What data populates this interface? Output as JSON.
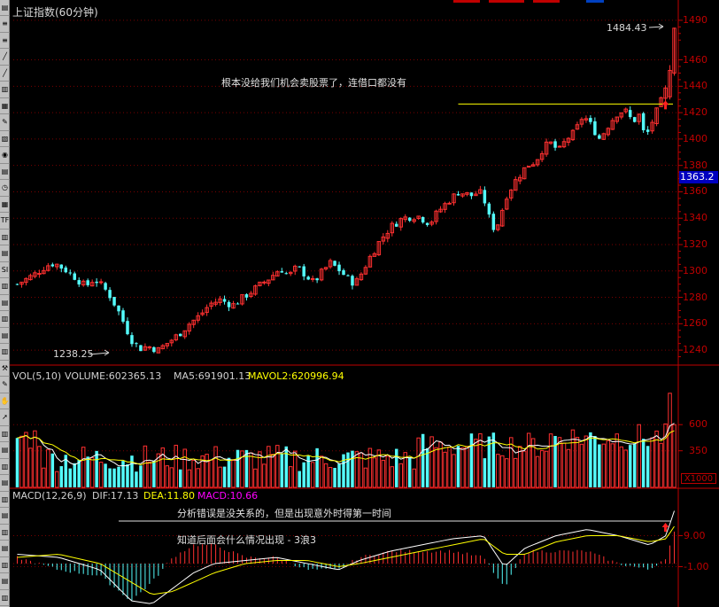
{
  "toolbar": {
    "buttons": [
      {
        "icon": "page-icon",
        "glyph": "▤"
      },
      {
        "icon": "list-icon",
        "glyph": "≡"
      },
      {
        "icon": "list-icon",
        "glyph": "≡"
      },
      {
        "icon": "line-tool-icon",
        "glyph": "╱"
      },
      {
        "icon": "line-tool-icon",
        "glyph": "╱"
      },
      {
        "icon": "chart-icon",
        "glyph": "▥"
      },
      {
        "icon": "chart-icon",
        "glyph": "▦"
      },
      {
        "icon": "pen-icon",
        "glyph": "✎"
      },
      {
        "icon": "chart-icon",
        "glyph": "▧"
      },
      {
        "icon": "circle-icon",
        "glyph": "◉"
      },
      {
        "icon": "chart-icon",
        "glyph": "▤"
      },
      {
        "icon": "clock-icon",
        "glyph": "◷"
      },
      {
        "icon": "grid-icon",
        "glyph": "▦"
      },
      {
        "icon": "label-tf",
        "glyph": "TF"
      },
      {
        "icon": "chart-icon",
        "glyph": "▥"
      },
      {
        "icon": "chart-icon",
        "glyph": "▤"
      },
      {
        "icon": "label-si",
        "glyph": "SI"
      },
      {
        "icon": "chart-icon",
        "glyph": "▥"
      },
      {
        "icon": "chart-icon",
        "glyph": "▤"
      },
      {
        "icon": "chart-icon",
        "glyph": "▥"
      },
      {
        "icon": "chart-icon",
        "glyph": "▤"
      },
      {
        "icon": "chart-icon",
        "glyph": "▥"
      },
      {
        "icon": "hammer-icon",
        "glyph": "⚒"
      },
      {
        "icon": "pen-icon",
        "glyph": "✎"
      },
      {
        "icon": "hand-icon",
        "glyph": "✋"
      },
      {
        "icon": "pointer-icon",
        "glyph": "➚"
      },
      {
        "icon": "chart-icon",
        "glyph": "▥"
      },
      {
        "icon": "chart-icon",
        "glyph": "▤"
      },
      {
        "icon": "chart-icon",
        "glyph": "▥"
      },
      {
        "icon": "chart-icon",
        "glyph": "▤"
      },
      {
        "icon": "chart-icon",
        "glyph": "▥"
      },
      {
        "icon": "chart-icon",
        "glyph": "▤"
      },
      {
        "icon": "chart-icon",
        "glyph": "▥"
      },
      {
        "icon": "chart-icon",
        "glyph": "▤"
      },
      {
        "icon": "chart-icon",
        "glyph": "▥"
      },
      {
        "icon": "chart-icon",
        "glyph": "▤"
      },
      {
        "icon": "chart-icon",
        "glyph": "▥"
      }
    ]
  },
  "main_chart": {
    "title": "上证指数(60分钟)",
    "y_axis": [
      "1490",
      "1460",
      "1440",
      "1420",
      "1400",
      "1380",
      "1360",
      "1340",
      "1320",
      "1300",
      "1280",
      "1260",
      "1240"
    ],
    "current_price": "1363.2",
    "high_label": "1484.43",
    "low_label": "1238.25",
    "annotation": "根本没给我们机会卖股票了，连借口都没有",
    "resistance_level": 1426.5
  },
  "volume_panel": {
    "label_name": "VOL(5,10)",
    "label_volume": "VOLUME:602365.13",
    "label_ma5": "MA5:691901.13",
    "label_mavol2": "MAVOL2:620996.94",
    "y_axis": [
      "600",
      "350"
    ],
    "unit": "X1000"
  },
  "macd_panel": {
    "label_name": "MACD(12,26,9)",
    "label_dif": "DIF:17.13",
    "label_dea": "DEA:11.80",
    "label_macd": "MACD:10.66",
    "y_axis": [
      "9.00",
      "-1.00"
    ],
    "annotation_1": "分析错误是没关系的，但是出现意外时得第一时间",
    "annotation_2": "知道后面会什么情况出现 - 3浪3"
  },
  "colors": {
    "up": "#ff3030",
    "down": "#54fcfc",
    "axis": "#c00000",
    "grid": "#7a0000",
    "ma_white": "#ffffff",
    "ma_yellow": "#ffff00",
    "macd_label": "#ff00ff",
    "price_tag_bg": "#0000c0"
  },
  "chart_data": {
    "type": "candlestick",
    "title": "上证指数(60分钟)",
    "ylim": [
      1230,
      1500
    ],
    "volume_ylim": [
      0,
      1000
    ],
    "volume_unit": "X1000",
    "macd_ylim": [
      -14,
      20
    ],
    "close_path": [
      [
        0,
        1290
      ],
      [
        8,
        1297
      ],
      [
        14,
        1304
      ],
      [
        18,
        1306
      ],
      [
        24,
        1300
      ],
      [
        28,
        1295
      ],
      [
        33,
        1288
      ],
      [
        37,
        1294
      ],
      [
        40,
        1290
      ],
      [
        44,
        1283
      ],
      [
        48,
        1272
      ],
      [
        51,
        1262
      ],
      [
        55,
        1248
      ],
      [
        59,
        1241
      ],
      [
        63,
        1243
      ],
      [
        68,
        1240
      ],
      [
        73,
        1246
      ],
      [
        78,
        1252
      ],
      [
        83,
        1260
      ],
      [
        88,
        1266
      ],
      [
        93,
        1275
      ],
      [
        98,
        1278
      ],
      [
        104,
        1274
      ],
      [
        110,
        1281
      ],
      [
        116,
        1288
      ],
      [
        122,
        1295
      ],
      [
        127,
        1302
      ],
      [
        131,
        1296
      ],
      [
        135,
        1303
      ],
      [
        139,
        1297
      ],
      [
        143,
        1291
      ],
      [
        147,
        1299
      ],
      [
        151,
        1306
      ],
      [
        155,
        1301
      ],
      [
        159,
        1295
      ],
      [
        163,
        1290
      ],
      [
        166,
        1298
      ],
      [
        170,
        1310
      ],
      [
        175,
        1323
      ],
      [
        180,
        1333
      ],
      [
        186,
        1340
      ],
      [
        193,
        1342
      ],
      [
        199,
        1336
      ],
      [
        203,
        1345
      ],
      [
        208,
        1353
      ],
      [
        213,
        1360
      ],
      [
        219,
        1357
      ],
      [
        223,
        1360
      ],
      [
        226,
        1351
      ],
      [
        229,
        1332
      ],
      [
        232,
        1336
      ],
      [
        236,
        1357
      ],
      [
        241,
        1370
      ],
      [
        246,
        1380
      ],
      [
        250,
        1383
      ],
      [
        254,
        1394
      ],
      [
        258,
        1397
      ],
      [
        261,
        1390
      ],
      [
        265,
        1400
      ],
      [
        269,
        1405
      ],
      [
        273,
        1418
      ],
      [
        277,
        1410
      ],
      [
        281,
        1400
      ],
      [
        285,
        1410
      ],
      [
        289,
        1419
      ],
      [
        293,
        1422
      ],
      [
        297,
        1413
      ],
      [
        300,
        1418
      ],
      [
        303,
        1400
      ],
      [
        306,
        1412
      ],
      [
        310,
        1426
      ],
      [
        313,
        1438
      ],
      [
        315,
        1470
      ],
      [
        317,
        1484
      ]
    ],
    "volume_ma_level": [
      0.3,
      0.55
    ],
    "dif_path": [
      [
        0,
        3
      ],
      [
        20,
        2
      ],
      [
        40,
        -2
      ],
      [
        55,
        -12
      ],
      [
        65,
        -13
      ],
      [
        75,
        -8
      ],
      [
        85,
        -3
      ],
      [
        95,
        0
      ],
      [
        110,
        1
      ],
      [
        125,
        2
      ],
      [
        140,
        0
      ],
      [
        155,
        -2
      ],
      [
        165,
        1
      ],
      [
        180,
        4
      ],
      [
        195,
        6
      ],
      [
        210,
        8
      ],
      [
        225,
        9
      ],
      [
        235,
        -1
      ],
      [
        245,
        5
      ],
      [
        260,
        9
      ],
      [
        275,
        11
      ],
      [
        290,
        9
      ],
      [
        305,
        6
      ],
      [
        313,
        9
      ],
      [
        317,
        17
      ]
    ],
    "dea_path": [
      [
        0,
        2
      ],
      [
        20,
        3
      ],
      [
        40,
        0
      ],
      [
        55,
        -6
      ],
      [
        65,
        -10
      ],
      [
        75,
        -9
      ],
      [
        85,
        -6
      ],
      [
        95,
        -3
      ],
      [
        110,
        0
      ],
      [
        125,
        1
      ],
      [
        140,
        1
      ],
      [
        155,
        -1
      ],
      [
        165,
        0
      ],
      [
        180,
        2
      ],
      [
        195,
        4
      ],
      [
        210,
        6
      ],
      [
        225,
        8
      ],
      [
        235,
        3
      ],
      [
        245,
        3
      ],
      [
        260,
        7
      ],
      [
        275,
        9
      ],
      [
        290,
        9
      ],
      [
        305,
        7
      ],
      [
        313,
        8
      ],
      [
        317,
        12
      ]
    ]
  }
}
